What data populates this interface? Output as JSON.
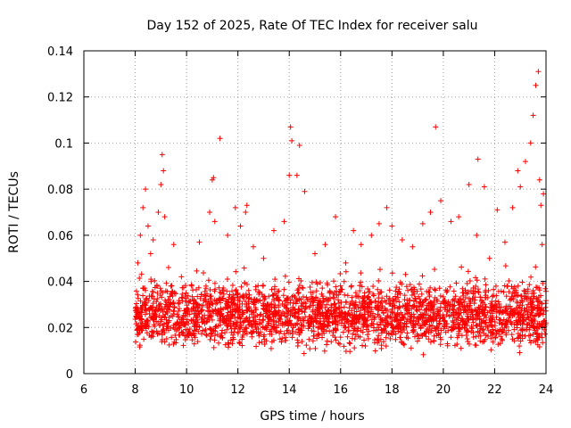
{
  "chart_data": {
    "type": "scatter",
    "title": "Day 152 of 2025, Rate Of TEC Index for receiver salu",
    "xlabel": "GPS time / hours",
    "ylabel": "ROTI / TECUs",
    "xlim": [
      6,
      24
    ],
    "ylim": [
      0,
      0.14
    ],
    "xticks": [
      "6",
      "8",
      "10",
      "12",
      "14",
      "16",
      "18",
      "20",
      "22",
      "24"
    ],
    "yticks": [
      "0",
      "0.02",
      "0.04",
      "0.06",
      "0.08",
      "0.1",
      "0.12",
      "0.14"
    ],
    "grid": true,
    "marker": "+",
    "color": "#ff0000",
    "series": [
      {
        "name": "ROTI",
        "x": [
          8.1,
          8.2,
          8.3,
          8.4,
          8.5,
          8.6,
          8.7,
          8.9,
          9.0,
          9.05,
          9.1,
          9.15,
          9.3,
          9.5,
          9.8,
          10.2,
          10.5,
          10.9,
          11.0,
          11.05,
          11.1,
          11.3,
          11.6,
          11.9,
          12.1,
          12.3,
          12.35,
          12.6,
          13.0,
          13.4,
          13.8,
          14.0,
          14.05,
          14.1,
          14.3,
          14.4,
          14.6,
          15.0,
          15.4,
          15.8,
          16.2,
          16.5,
          16.8,
          17.2,
          17.5,
          17.8,
          18.0,
          18.4,
          18.8,
          19.2,
          19.5,
          19.7,
          19.9,
          20.3,
          20.6,
          21.0,
          21.3,
          21.35,
          21.6,
          21.8,
          22.1,
          22.4,
          22.7,
          22.9,
          23.0,
          23.2,
          23.4,
          23.5,
          23.6,
          23.7,
          23.75,
          23.8,
          23.85,
          23.9
        ],
        "y": [
          0.048,
          0.06,
          0.072,
          0.08,
          0.064,
          0.052,
          0.058,
          0.07,
          0.082,
          0.095,
          0.088,
          0.068,
          0.046,
          0.056,
          0.042,
          0.038,
          0.057,
          0.07,
          0.084,
          0.085,
          0.066,
          0.102,
          0.06,
          0.072,
          0.064,
          0.07,
          0.073,
          0.055,
          0.05,
          0.062,
          0.066,
          0.086,
          0.107,
          0.101,
          0.086,
          0.099,
          0.079,
          0.052,
          0.056,
          0.068,
          0.048,
          0.062,
          0.056,
          0.06,
          0.065,
          0.072,
          0.064,
          0.058,
          0.055,
          0.065,
          0.07,
          0.107,
          0.075,
          0.066,
          0.068,
          0.082,
          0.06,
          0.093,
          0.081,
          0.05,
          0.071,
          0.057,
          0.072,
          0.088,
          0.081,
          0.092,
          0.1,
          0.112,
          0.125,
          0.131,
          0.084,
          0.073,
          0.056,
          0.078
        ]
      }
    ],
    "dense_band": {
      "x_start": 8.0,
      "x_end": 24.0,
      "typical_min": 0.007,
      "typical_max": 0.045
    }
  }
}
